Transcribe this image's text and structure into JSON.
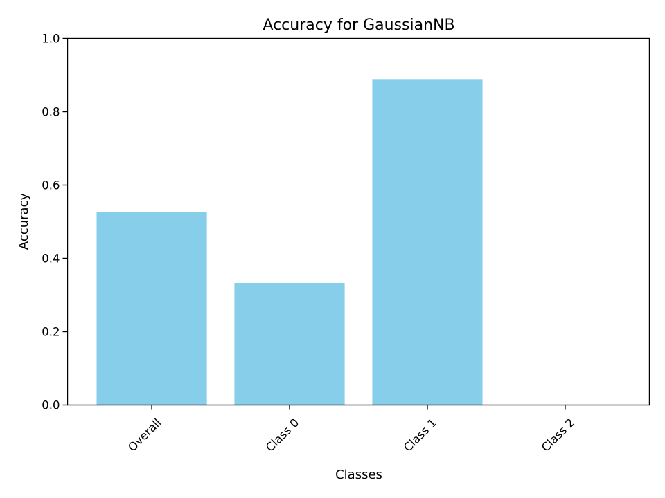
{
  "chart_data": {
    "type": "bar",
    "title": "Accuracy for GaussianNB",
    "xlabel": "Classes",
    "ylabel": "Accuracy",
    "categories": [
      "Overall",
      "Class 0",
      "Class 1",
      "Class 2"
    ],
    "values": [
      0.526,
      0.333,
      0.889,
      0.0
    ],
    "ylim": [
      0,
      1.0
    ],
    "yticks": [
      "0.0",
      "0.2",
      "0.4",
      "0.6",
      "0.8",
      "1.0"
    ],
    "x_tick_rotation_deg": 45,
    "bar_color": "#87ceeb",
    "grid": false,
    "legend": false
  }
}
